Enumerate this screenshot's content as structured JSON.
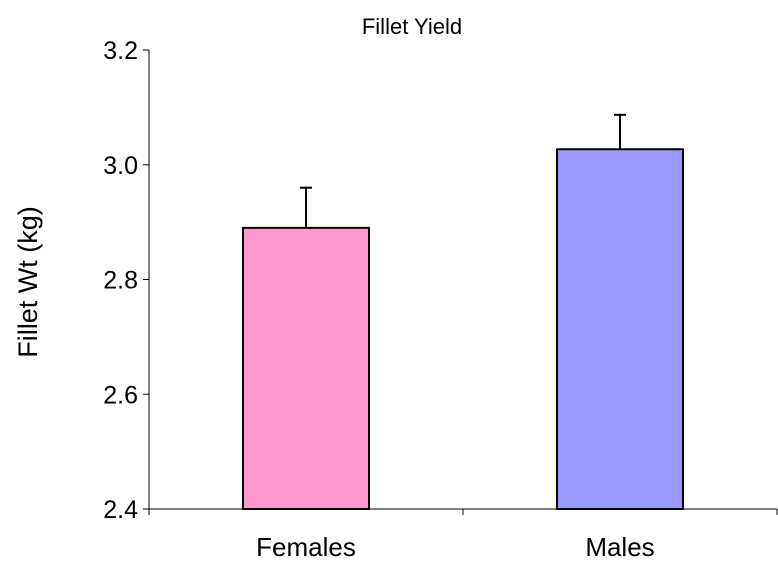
{
  "chart_data": {
    "type": "bar",
    "title": "Fillet Yield",
    "xlabel": "",
    "ylabel": "Fillet Wt  (kg)",
    "categories": [
      "Females",
      "Males"
    ],
    "values": [
      2.89,
      3.027
    ],
    "error_plus": [
      0.07,
      0.06
    ],
    "ylim": [
      2.4,
      3.2
    ],
    "yticks": [
      2.4,
      2.6,
      2.8,
      3.0,
      3.2
    ],
    "ytick_labels": [
      "2.4",
      "2.6",
      "2.8",
      "3.0",
      "3.2"
    ],
    "colors": [
      "#ff99cc",
      "#9999ff"
    ],
    "grid": false,
    "legend": "none"
  }
}
